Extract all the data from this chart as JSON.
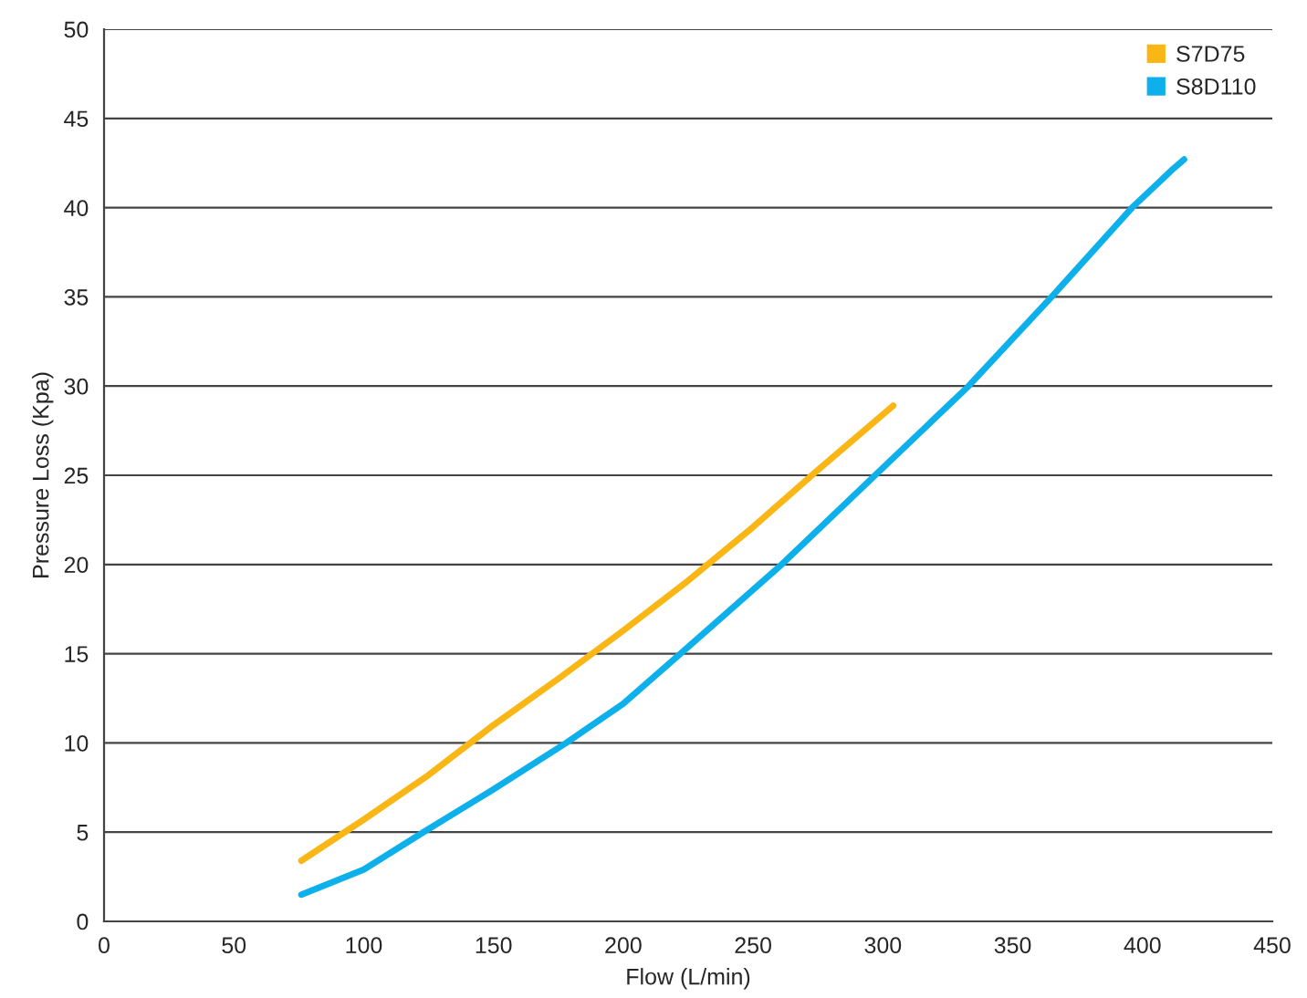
{
  "chart_data": {
    "type": "line",
    "xlabel": "Flow (L/min)",
    "ylabel": "Pressure Loss (Kpa)",
    "xlim": [
      0,
      450
    ],
    "xticks": [
      0,
      50,
      100,
      150,
      200,
      250,
      300,
      350,
      400,
      450
    ],
    "ylim": [
      0,
      50
    ],
    "yticks": [
      0,
      5,
      10,
      15,
      20,
      25,
      30,
      35,
      40,
      45,
      50
    ],
    "grid": "y",
    "legend": "top right",
    "marker": "none",
    "line_style": "solid",
    "series": [
      {
        "name": "S7D75",
        "color": "#f9b615",
        "x": [
          76,
          100,
          125,
          150,
          175,
          200,
          225,
          250,
          275,
          304
        ],
        "values": [
          3.4,
          5.7,
          8.2,
          11.0,
          13.6,
          16.3,
          19.1,
          22.1,
          25.3,
          28.9
        ]
      },
      {
        "name": "S8D110",
        "color": "#0eb0ec",
        "x": [
          76,
          100,
          123,
          150,
          178,
          200,
          222,
          261,
          297,
          333,
          365,
          396,
          412,
          416
        ],
        "values": [
          1.5,
          2.9,
          5.0,
          7.4,
          10.0,
          12.2,
          15.0,
          20.0,
          25.0,
          30.0,
          35.0,
          40.0,
          42.2,
          42.7
        ]
      }
    ]
  }
}
